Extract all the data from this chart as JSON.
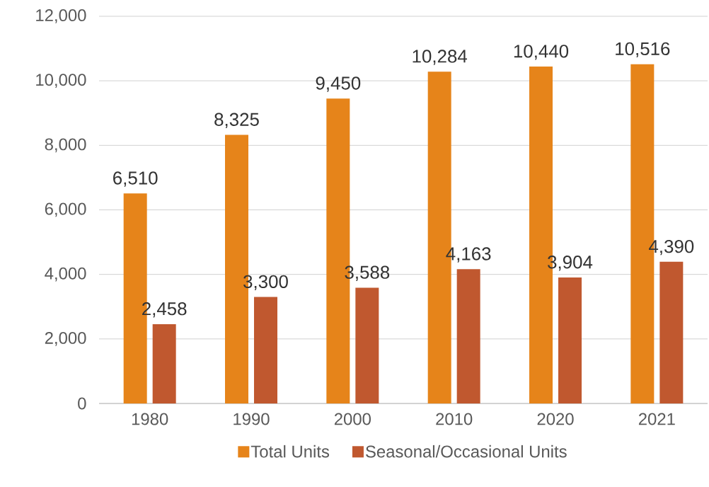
{
  "chart_data": {
    "type": "bar",
    "categories": [
      "1980",
      "1990",
      "2000",
      "2010",
      "2020",
      "2021"
    ],
    "series": [
      {
        "name": "Total Units",
        "color": "#e6841a",
        "values": [
          6510,
          8325,
          9450,
          10284,
          10440,
          10516
        ],
        "value_labels": [
          "6,510",
          "8,325",
          "9,450",
          "10,284",
          "10,440",
          "10,516"
        ]
      },
      {
        "name": "Seasonal/Occasional Units",
        "color": "#c0582f",
        "values": [
          2458,
          3300,
          3588,
          4163,
          3904,
          4390
        ],
        "value_labels": [
          "2,458",
          "3,300",
          "3,588",
          "4,163",
          "3,904",
          "4,390"
        ]
      }
    ],
    "ylim": [
      0,
      12000
    ],
    "yticks": [
      {
        "value": 0,
        "label": "0"
      },
      {
        "value": 2000,
        "label": "2,000"
      },
      {
        "value": 4000,
        "label": "4,000"
      },
      {
        "value": 6000,
        "label": "6,000"
      },
      {
        "value": 8000,
        "label": "8,000"
      },
      {
        "value": 10000,
        "label": "10,000"
      },
      {
        "value": 12000,
        "label": "12,000"
      }
    ],
    "grid": "y",
    "legend": "bottom"
  }
}
